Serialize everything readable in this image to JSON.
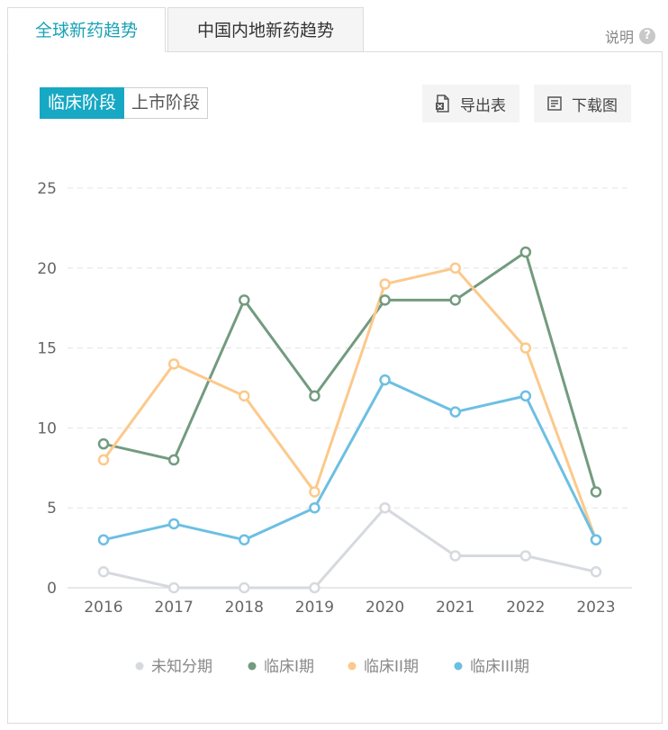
{
  "tabs": {
    "active": "全球新药趋势",
    "inactive": "中国内地新药趋势"
  },
  "help": {
    "label": "说明",
    "icon": "question-icon",
    "glyph": "?"
  },
  "toolbar": {
    "segments": [
      "临床阶段",
      "上市阶段"
    ],
    "export_label": "导出表",
    "download_label": "下载图",
    "export_icon": "excel-export-icon",
    "download_icon": "document-icon"
  },
  "colors": {
    "accent": "#1aa3b4",
    "segment_active": "#17a8c4"
  },
  "chart_data": {
    "type": "line",
    "categories": [
      "2016",
      "2017",
      "2018",
      "2019",
      "2020",
      "2021",
      "2022",
      "2023"
    ],
    "ylim": [
      0,
      25
    ],
    "yticks": [
      0,
      5,
      10,
      15,
      20,
      25
    ],
    "grid": true,
    "legend_position": "bottom",
    "series": [
      {
        "name": "未知分期",
        "color": "#d6d9de",
        "values": [
          1,
          0,
          0,
          0,
          5,
          2,
          2,
          1
        ]
      },
      {
        "name": "临床I期",
        "color": "#739b7f",
        "values": [
          9,
          8,
          18,
          12,
          18,
          18,
          21,
          6
        ]
      },
      {
        "name": "临床II期",
        "color": "#fcc98b",
        "values": [
          8,
          14,
          12,
          6,
          19,
          20,
          15,
          3
        ]
      },
      {
        "name": "临床III期",
        "color": "#6cbfe3",
        "values": [
          3,
          4,
          3,
          5,
          13,
          11,
          12,
          3
        ]
      }
    ]
  }
}
